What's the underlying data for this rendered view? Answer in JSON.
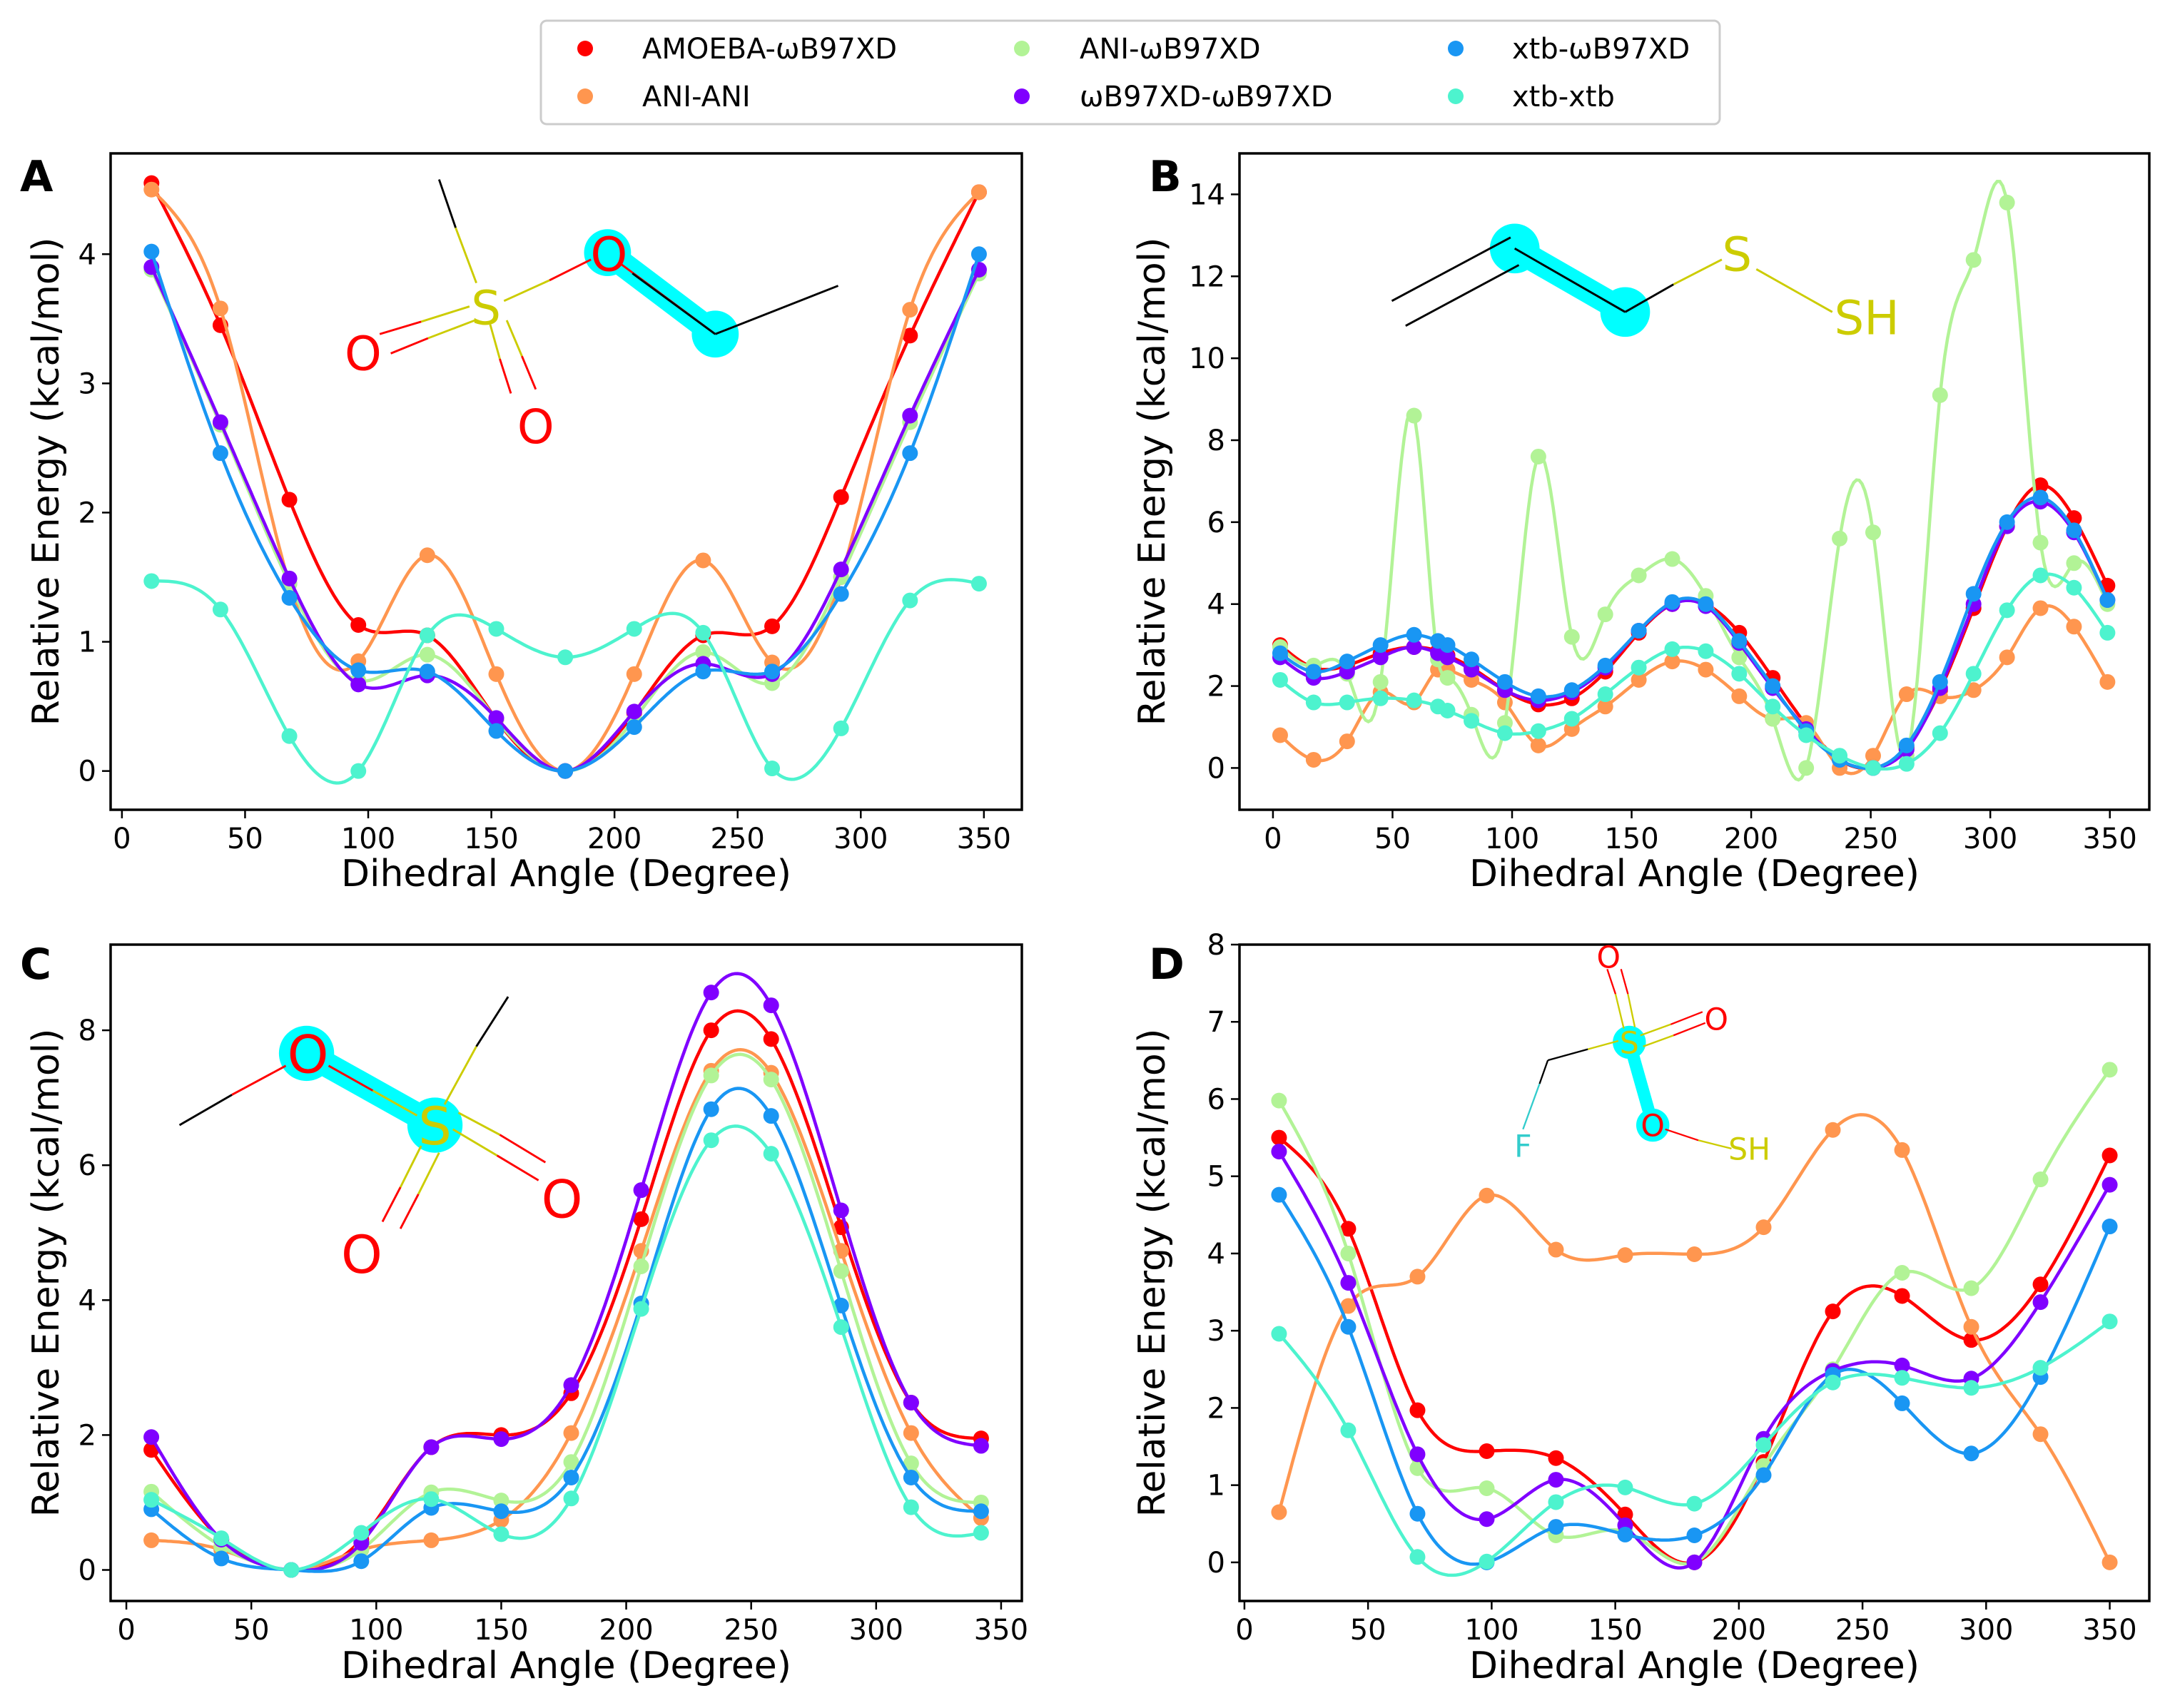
{
  "legend": {
    "entries": [
      {
        "label": "AMOEBA-ωB97XD",
        "color": "#ff0000"
      },
      {
        "label": "ANI-ANI",
        "color": "#ff964f"
      },
      {
        "label": "ANI-ωB97XD",
        "color": "#b2f396"
      },
      {
        "label": "ωB97XD-ωB97XD",
        "color": "#8000ff"
      },
      {
        "label": "xtb-ωB97XD",
        "color": "#1996f3"
      },
      {
        "label": "xtb-xtb",
        "color": "#4df3ce"
      }
    ],
    "placement": "top-center"
  },
  "chart_data": [
    {
      "type": "line",
      "panel": "A",
      "xlabel": "Dihedral Angle (Degree)",
      "ylabel": "Relative Energy (kcal/mol)",
      "xlim": [
        -4.6,
        365.4
      ],
      "ylim": [
        -0.3,
        4.78
      ],
      "xticks": [
        0,
        50,
        100,
        150,
        200,
        250,
        300,
        350
      ],
      "yticks": [
        0,
        1,
        2,
        3,
        4
      ],
      "grid": false,
      "x": [
        12,
        40,
        68,
        96,
        124,
        152,
        180,
        208,
        236,
        264,
        292,
        320,
        348
      ],
      "series": [
        {
          "name": "AMOEBA-ωB97XD",
          "values": [
            4.55,
            3.45,
            2.1,
            1.13,
            1.05,
            0.4,
            0,
            0.45,
            1.05,
            1.12,
            2.12,
            3.37,
            4.48
          ]
        },
        {
          "name": "ANI-ANI",
          "values": [
            4.5,
            3.58,
            1.45,
            0.85,
            1.67,
            0.75,
            0,
            0.75,
            1.63,
            0.84,
            1.5,
            3.57,
            4.48
          ]
        },
        {
          "name": "ANI-ωB97XD",
          "values": [
            3.88,
            2.68,
            1.45,
            0.7,
            0.9,
            0.4,
            0,
            0.4,
            0.92,
            0.68,
            1.5,
            2.7,
            3.85
          ]
        },
        {
          "name": "ωB97XD-ωB97XD",
          "values": [
            3.9,
            2.7,
            1.49,
            0.67,
            0.74,
            0.41,
            0,
            0.46,
            0.83,
            0.75,
            1.56,
            2.75,
            3.88
          ]
        },
        {
          "name": "xtb-ωB97XD",
          "values": [
            4.02,
            2.46,
            1.34,
            0.78,
            0.77,
            0.31,
            0,
            0.34,
            0.77,
            0.77,
            1.37,
            2.46,
            4.0
          ]
        },
        {
          "name": "xtb-xtb",
          "values": [
            1.47,
            1.25,
            0.27,
            0.0,
            1.05,
            1.1,
            0.88,
            1.1,
            1.07,
            0.02,
            0.33,
            1.32,
            1.45
          ]
        }
      ],
      "molecule_labels": [
        "S",
        "O",
        "O",
        "O"
      ]
    },
    {
      "type": "line",
      "panel": "B",
      "xlabel": "Dihedral Angle (Degree)",
      "ylabel": "Relative Energy (kcal/mol)",
      "xlim": [
        -14,
        366.5
      ],
      "ylim": [
        -1.02,
        15.0
      ],
      "xticks": [
        0,
        50,
        100,
        150,
        200,
        250,
        300,
        350
      ],
      "yticks": [
        0,
        2,
        4,
        6,
        8,
        10,
        12,
        14
      ],
      "grid": false,
      "x": [
        3,
        17,
        31,
        45,
        59,
        69,
        73,
        83,
        97,
        111,
        125,
        139,
        153,
        167,
        181,
        195,
        209,
        223,
        237,
        251,
        265,
        279,
        293,
        307,
        321,
        335,
        349
      ],
      "series": [
        {
          "name": "AMOEBA-ωB97XD",
          "values": [
            3.0,
            2.45,
            2.5,
            2.8,
            2.95,
            2.85,
            2.75,
            2.45,
            1.9,
            1.55,
            1.7,
            2.35,
            3.3,
            4.0,
            4.0,
            3.3,
            2.2,
            1.05,
            0.2,
            0,
            0.5,
            1.9,
            3.9,
            5.9,
            6.9,
            6.1,
            4.45
          ]
        },
        {
          "name": "ANI-ANI",
          "values": [
            0.8,
            0.2,
            0.65,
            1.85,
            1.6,
            2.4,
            2.4,
            2.15,
            1.6,
            0.55,
            0.95,
            1.5,
            2.15,
            2.6,
            2.4,
            1.75,
            1.2,
            1.1,
            0.0,
            0.3,
            1.8,
            1.75,
            1.9,
            2.7,
            3.9,
            3.45,
            2.1
          ]
        },
        {
          "name": "ANI-ωB97XD",
          "values": [
            2.95,
            2.5,
            2.3,
            2.1,
            8.6,
            2.65,
            2.2,
            1.3,
            1.1,
            7.6,
            3.2,
            3.75,
            4.7,
            5.1,
            4.2,
            2.7,
            1.2,
            0.0,
            5.6,
            5.75,
            0.3,
            9.1,
            12.4,
            13.8,
            5.5,
            5.0,
            4.0
          ]
        },
        {
          "name": "ωB97XD-ωB97XD",
          "values": [
            2.7,
            2.2,
            2.35,
            2.7,
            2.95,
            2.8,
            2.7,
            2.4,
            1.9,
            1.65,
            1.85,
            2.45,
            3.35,
            4.0,
            3.95,
            3.05,
            1.95,
            0.95,
            0.2,
            0,
            0.45,
            1.95,
            4.0,
            5.9,
            6.5,
            5.75,
            4.1
          ]
        },
        {
          "name": "xtb-ωB97XD",
          "values": [
            2.8,
            2.35,
            2.6,
            3.0,
            3.25,
            3.1,
            3.0,
            2.65,
            2.1,
            1.75,
            1.9,
            2.5,
            3.35,
            4.05,
            4.0,
            3.1,
            2.0,
            0.9,
            0.2,
            0,
            0.55,
            2.1,
            4.25,
            6.0,
            6.6,
            5.8,
            4.1
          ]
        },
        {
          "name": "xtb-xtb",
          "values": [
            2.15,
            1.6,
            1.6,
            1.7,
            1.65,
            1.5,
            1.4,
            1.15,
            0.85,
            0.9,
            1.2,
            1.8,
            2.45,
            2.9,
            2.85,
            2.3,
            1.5,
            0.8,
            0.3,
            0,
            0.1,
            0.85,
            2.3,
            3.85,
            4.7,
            4.4,
            3.3
          ]
        }
      ],
      "molecule_labels": [
        "S",
        "SH"
      ]
    },
    {
      "type": "line",
      "panel": "C",
      "xlabel": "Dihedral Angle (Degree)",
      "ylabel": "Relative Energy (kcal/mol)",
      "xlim": [
        -6.3,
        358.3
      ],
      "ylim": [
        -0.46,
        9.27
      ],
      "xticks": [
        0,
        50,
        100,
        150,
        200,
        250,
        300,
        350
      ],
      "yticks": [
        0,
        2,
        4,
        6,
        8
      ],
      "grid": false,
      "x": [
        10,
        38,
        66,
        94,
        122,
        150,
        178,
        206,
        234,
        258,
        286,
        314,
        342
      ],
      "series": [
        {
          "name": "AMOEBA-ωB97XD",
          "values": [
            1.78,
            0.45,
            0,
            0.45,
            1.82,
            2.0,
            2.62,
            5.2,
            8.0,
            7.87,
            5.08,
            2.48,
            1.95
          ]
        },
        {
          "name": "ANI-ANI",
          "values": [
            0.44,
            0.3,
            0,
            0.3,
            0.44,
            0.74,
            2.03,
            4.73,
            7.4,
            7.37,
            4.73,
            2.03,
            0.77
          ]
        },
        {
          "name": "ANI-ωB97XD",
          "values": [
            1.16,
            0.35,
            0,
            0.3,
            1.15,
            1.03,
            1.6,
            4.5,
            7.33,
            7.27,
            4.43,
            1.58,
            1.0
          ]
        },
        {
          "name": "ωB97XD-ωB97XD",
          "values": [
            1.97,
            0.45,
            0,
            0.4,
            1.82,
            1.94,
            2.74,
            5.63,
            8.56,
            8.37,
            5.33,
            2.48,
            1.84
          ]
        },
        {
          "name": "xtb-ωB97XD",
          "values": [
            0.9,
            0.17,
            0,
            0.13,
            0.92,
            0.87,
            1.37,
            3.95,
            6.83,
            6.73,
            3.92,
            1.37,
            0.87
          ]
        },
        {
          "name": "xtb-xtb",
          "values": [
            1.04,
            0.47,
            0,
            0.55,
            1.05,
            0.53,
            1.06,
            3.87,
            6.37,
            6.17,
            3.6,
            0.93,
            0.55
          ]
        }
      ],
      "molecule_labels": [
        "O",
        "S",
        "O",
        "O"
      ]
    },
    {
      "type": "line",
      "panel": "D",
      "xlabel": "Dihedral Angle (Degree)",
      "ylabel": "Relative Energy (kcal/mol)",
      "xlim": [
        -2,
        366
      ],
      "ylim": [
        -0.5,
        8.0
      ],
      "xticks": [
        0,
        50,
        100,
        150,
        200,
        250,
        300,
        350
      ],
      "yticks": [
        0,
        1,
        2,
        3,
        4,
        5,
        6,
        7,
        8
      ],
      "grid": false,
      "x": [
        14,
        42,
        70,
        98,
        126,
        154,
        182,
        210,
        238,
        266,
        294,
        322,
        350
      ],
      "series": [
        {
          "name": "AMOEBA-ωB97XD",
          "values": [
            5.5,
            4.32,
            1.97,
            1.44,
            1.35,
            0.62,
            0,
            1.3,
            3.25,
            3.45,
            2.88,
            3.6,
            5.27
          ]
        },
        {
          "name": "ANI-ANI",
          "values": [
            0.65,
            3.32,
            3.7,
            4.75,
            4.05,
            3.98,
            3.99,
            4.34,
            5.6,
            5.34,
            3.05,
            1.66,
            0
          ]
        },
        {
          "name": "ANI-ωB97XD",
          "values": [
            5.98,
            4.0,
            1.22,
            0.96,
            0.35,
            0.4,
            0,
            1.25,
            2.5,
            3.75,
            3.55,
            4.96,
            6.38
          ]
        },
        {
          "name": "ωB97XD-ωB97XD",
          "values": [
            5.32,
            3.62,
            1.4,
            0.56,
            1.07,
            0.48,
            0,
            1.6,
            2.48,
            2.55,
            2.38,
            3.37,
            4.89
          ]
        },
        {
          "name": "xtb-ωB97XD",
          "values": [
            4.76,
            3.05,
            0.63,
            0,
            0.46,
            0.36,
            0.35,
            1.13,
            2.43,
            2.06,
            1.41,
            2.4,
            4.35
          ]
        },
        {
          "name": "xtb-xtb",
          "values": [
            2.96,
            1.71,
            0.07,
            0.01,
            0.78,
            0.97,
            0.76,
            1.52,
            2.33,
            2.39,
            2.26,
            2.52,
            3.12
          ]
        }
      ],
      "molecule_labels": [
        "O",
        "S",
        "O",
        "F",
        "O",
        "SH"
      ]
    }
  ]
}
